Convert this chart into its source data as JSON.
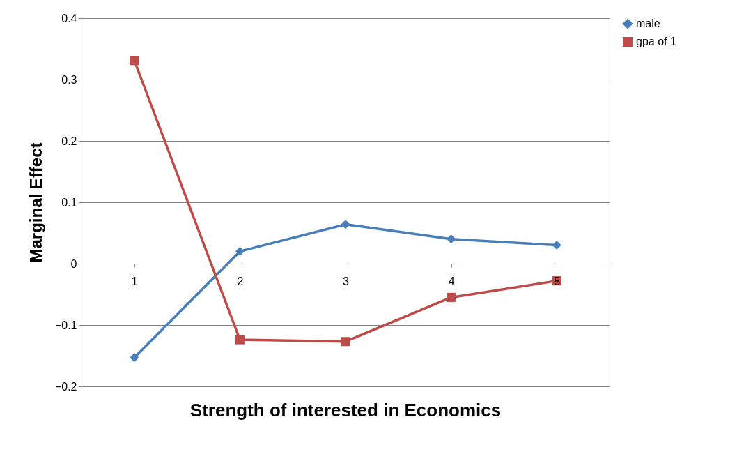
{
  "chart_data": {
    "type": "line",
    "xlabel": "Strength of interested in Economics",
    "ylabel": "Marginal Effect",
    "categories": [
      "1",
      "2",
      "3",
      "4",
      "5"
    ],
    "series": [
      {
        "name": "male",
        "color": "#4a7ebb",
        "marker": "diamond",
        "values": [
          -0.153,
          0.02,
          0.064,
          0.04,
          0.03
        ]
      },
      {
        "name": "gpa of 1",
        "color": "#be4b48",
        "marker": "square",
        "values": [
          0.331,
          -0.124,
          -0.127,
          -0.055,
          -0.028
        ]
      }
    ],
    "ylim": [
      -0.2,
      0.4
    ],
    "yticks": [
      -0.2,
      -0.1,
      0,
      0.1,
      0.2,
      0.3,
      0.4
    ],
    "grid": "y",
    "legend": "right",
    "line_style": "solid"
  }
}
